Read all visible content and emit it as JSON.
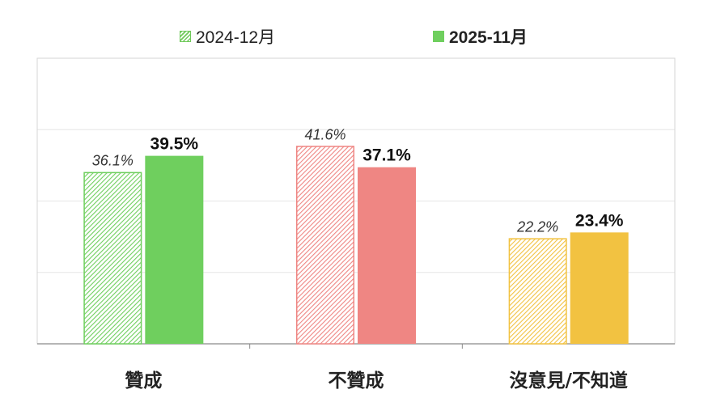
{
  "legend": {
    "prev_label": "2024-12月",
    "curr_label": "2025-11月"
  },
  "chart_data": {
    "type": "bar",
    "categories": [
      "贊成",
      "不贊成",
      "沒意見/不知道"
    ],
    "series": [
      {
        "name": "2024-12月",
        "values": [
          36.1,
          41.6,
          22.2
        ],
        "labels": [
          "36.1%",
          "41.6%",
          "22.2%"
        ],
        "style": "hatched"
      },
      {
        "name": "2025-11月",
        "values": [
          39.5,
          37.1,
          23.4
        ],
        "labels": [
          "39.5%",
          "37.1%",
          "23.4%"
        ],
        "style": "solid"
      }
    ],
    "category_colors": [
      "#6fcf5e",
      "#ef8683",
      "#f2c241"
    ],
    "ylim": [
      0,
      60
    ],
    "grid": true,
    "legend_position": "top"
  }
}
